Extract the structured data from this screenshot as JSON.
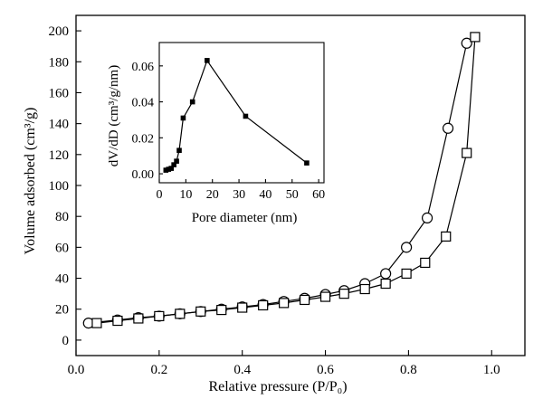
{
  "chart_data": [
    {
      "type": "scatter",
      "title": "",
      "xlabel": "Relative pressure (P/P₀)",
      "ylabel": "Volume adsorbed (cm³/g)",
      "xlim": [
        0.0,
        1.08
      ],
      "ylim": [
        -10,
        210
      ],
      "xticks": [
        0.0,
        0.2,
        0.4,
        0.6,
        0.8,
        1.0
      ],
      "xtick_labels": [
        "0.0",
        "0.2",
        "0.4",
        "0.6",
        "0.8",
        "1.0"
      ],
      "yticks": [
        0,
        20,
        40,
        60,
        80,
        100,
        120,
        140,
        160,
        180,
        200
      ],
      "ytick_labels": [
        "0",
        "20",
        "40",
        "60",
        "80",
        "100",
        "120",
        "140",
        "160",
        "180",
        "200"
      ],
      "grid": false,
      "series": [
        {
          "marker": "circle",
          "color": "#000000",
          "x": [
            0.03,
            0.1,
            0.15,
            0.2,
            0.25,
            0.3,
            0.35,
            0.4,
            0.45,
            0.5,
            0.55,
            0.6,
            0.645,
            0.695,
            0.745,
            0.795,
            0.845,
            0.895,
            0.94
          ],
          "y": [
            11,
            13,
            14.5,
            15.5,
            17,
            18.5,
            20,
            21.5,
            23,
            25,
            27,
            29.5,
            32,
            36.5,
            43,
            60,
            79,
            137,
            192
          ]
        },
        {
          "marker": "square",
          "color": "#000000",
          "x": [
            0.05,
            0.1,
            0.15,
            0.2,
            0.25,
            0.3,
            0.35,
            0.4,
            0.45,
            0.5,
            0.55,
            0.6,
            0.645,
            0.695,
            0.745,
            0.795,
            0.84,
            0.89,
            0.94,
            0.96
          ],
          "y": [
            11,
            12.5,
            14,
            15.5,
            17,
            18.5,
            19.5,
            21,
            22.5,
            24,
            26,
            28,
            30,
            33,
            36.5,
            43,
            50,
            67,
            121,
            196
          ]
        }
      ]
    },
    {
      "type": "line",
      "title": "",
      "xlabel": "Pore diameter (nm)",
      "ylabel": "dV/dD (cm³/g/nm)",
      "xlim": [
        0,
        62
      ],
      "ylim": [
        -0.005,
        0.073
      ],
      "xticks": [
        0,
        10,
        20,
        30,
        40,
        50,
        60
      ],
      "xtick_labels": [
        "0",
        "10",
        "20",
        "30",
        "40",
        "50",
        "60"
      ],
      "yticks": [
        0.0,
        0.02,
        0.04,
        0.06
      ],
      "ytick_labels": [
        "0.00",
        "0.02",
        "0.04",
        "0.06"
      ],
      "grid": false,
      "series": [
        {
          "marker": "filled-square",
          "color": "#000000",
          "x": [
            2.5,
            3.5,
            4.5,
            5.5,
            6.5,
            7.5,
            9,
            12.5,
            18,
            32.5,
            55.5
          ],
          "y": [
            0.002,
            0.0025,
            0.003,
            0.005,
            0.007,
            0.013,
            0.031,
            0.04,
            0.063,
            0.032,
            0.006
          ]
        }
      ]
    }
  ]
}
